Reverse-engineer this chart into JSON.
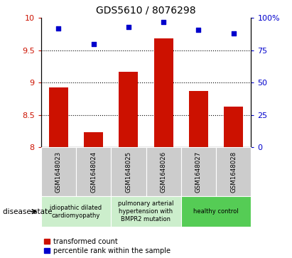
{
  "title": "GDS5610 / 8076298",
  "samples": [
    "GSM1648023",
    "GSM1648024",
    "GSM1648025",
    "GSM1648026",
    "GSM1648027",
    "GSM1648028"
  ],
  "transformed_count": [
    8.92,
    8.23,
    9.17,
    9.68,
    8.87,
    8.63
  ],
  "percentile_rank": [
    92,
    80,
    93,
    97,
    91,
    88
  ],
  "ylim_left": [
    8.0,
    10.0
  ],
  "ylim_right": [
    0,
    100
  ],
  "yticks_left": [
    8.0,
    8.5,
    9.0,
    9.5,
    10.0
  ],
  "yticks_right": [
    0,
    25,
    50,
    75,
    100
  ],
  "ytick_labels_left": [
    "8",
    "8.5",
    "9",
    "9.5",
    "10"
  ],
  "ytick_labels_right": [
    "0",
    "25",
    "50",
    "75",
    "100%"
  ],
  "bar_color": "#cc1100",
  "dot_color": "#0000cc",
  "bar_width": 0.55,
  "disease_groups": [
    {
      "label": "idiopathic dilated\ncardiomyopathy",
      "samples": [
        0,
        1
      ],
      "color": "#cceecc"
    },
    {
      "label": "pulmonary arterial\nhypertension with\nBMPR2 mutation",
      "samples": [
        2,
        3
      ],
      "color": "#cceecc"
    },
    {
      "label": "healthy control",
      "samples": [
        4,
        5
      ],
      "color": "#55cc55"
    }
  ],
  "legend_red_label": "transformed count",
  "legend_blue_label": "percentile rank within the sample",
  "disease_state_label": "disease state",
  "tick_bg_color": "#cccccc",
  "grid_color": "black",
  "grid_linewidth": 0.8
}
